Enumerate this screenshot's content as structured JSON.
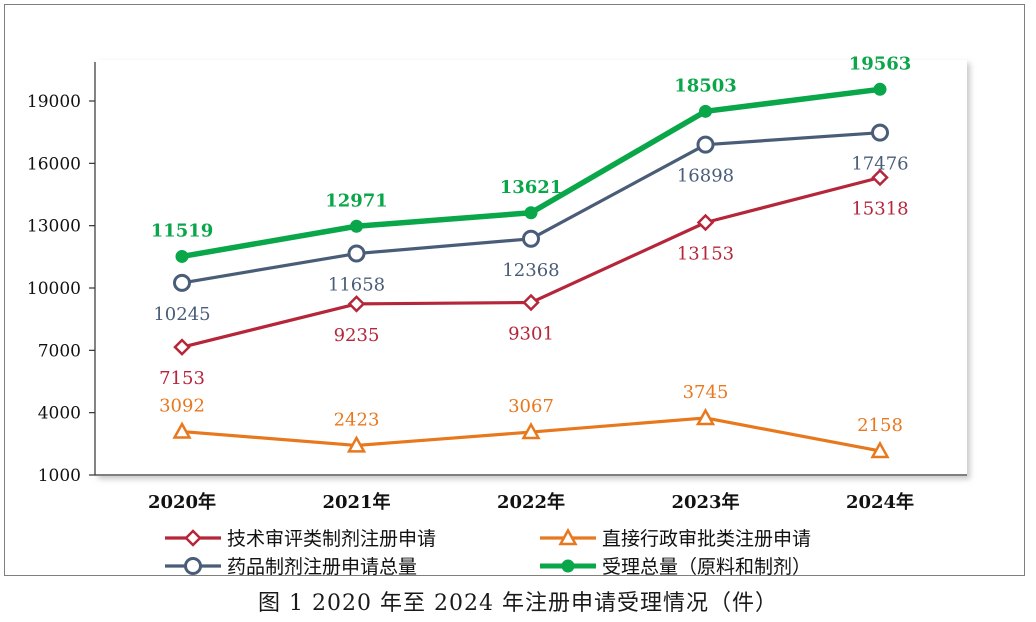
{
  "caption": "图 1   2020 年至 2024 年注册申请受理情况（件）",
  "chart_data": {
    "type": "line",
    "categories": [
      "2020年",
      "2021年",
      "2022年",
      "2023年",
      "2024年"
    ],
    "ylim": [
      1000,
      20000
    ],
    "yticks": [
      1000,
      4000,
      7000,
      10000,
      13000,
      16000,
      19000
    ],
    "grid": false,
    "legend_position": "bottom",
    "series": [
      {
        "name": "受理总量（原料和制剂）",
        "values": [
          11519,
          12971,
          13621,
          18503,
          19563
        ],
        "color": "#0aa64a",
        "marker": "filled-circle",
        "label_position": "above",
        "label_bold": true
      },
      {
        "name": "药品制剂注册申请总量",
        "values": [
          10245,
          11658,
          12368,
          16898,
          17476
        ],
        "color": "#4a5d78",
        "marker": "hollow-circle",
        "label_position": "below",
        "label_bold": false
      },
      {
        "name": "技术审评类制剂注册申请",
        "values": [
          7153,
          9235,
          9301,
          13153,
          15318
        ],
        "color": "#b5263a",
        "marker": "hollow-diamond",
        "label_position": "below",
        "label_bold": false
      },
      {
        "name": "直接行政审批类注册申请",
        "values": [
          3092,
          2423,
          3067,
          3745,
          2158
        ],
        "color": "#e8781e",
        "marker": "hollow-triangle",
        "label_position": "above",
        "label_bold": false
      }
    ],
    "legend_order": [
      2,
      3,
      1,
      0
    ]
  }
}
